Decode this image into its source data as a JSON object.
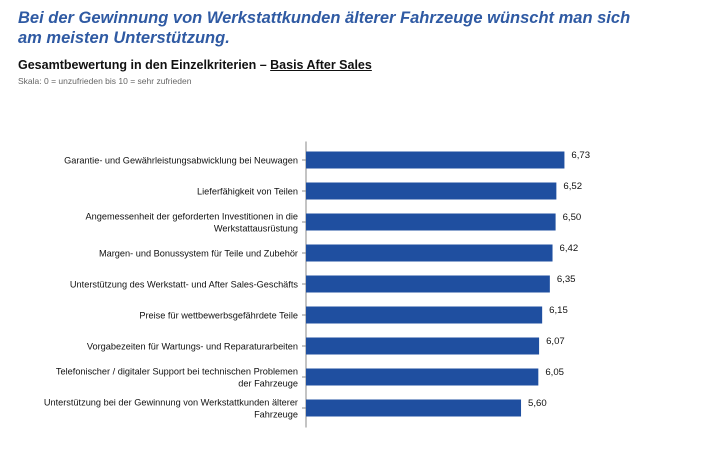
{
  "header": {
    "headline": "Bei der Gewinnung von Werkstattkunden älterer Fahrzeuge wünscht man sich am meisten Unterstützung.",
    "subtitle_main": "Gesamtbewertung in den Einzelkriterien – ",
    "subtitle_basis": "Basis After Sales",
    "scale_note": "Skala: 0 = unzufrieden bis 10 = sehr zufrieden"
  },
  "chart_data": {
    "type": "bar",
    "orientation": "horizontal",
    "title": "Gesamtbewertung in den Einzelkriterien – Basis After Sales",
    "subtitle": "Skala: 0 = unzufrieden bis 10 = sehr zufrieden",
    "categories": [
      [
        "Garantie- und Gewährleistungsabwicklung bei Neuwagen"
      ],
      [
        "Lieferfähigkeit von Teilen"
      ],
      [
        "Angemessenheit der geforderten Investitionen in die",
        "Werkstattausrüstung"
      ],
      [
        "Margen- und Bonussystem für Teile und Zubehör"
      ],
      [
        "Unterstützung des Werkstatt- und After Sales-Geschäfts"
      ],
      [
        "Preise für wettbewerbsgefährdete Teile"
      ],
      [
        "Vorgabezeiten für Wartungs- und Reparaturarbeiten"
      ],
      [
        "Telefonischer / digitaler Support bei technischen Problemen",
        "der Fahrzeuge"
      ],
      [
        "Unterstützung bei der Gewinnung von Werkstattkunden älterer",
        "Fahrzeuge"
      ]
    ],
    "values": [
      6.73,
      6.52,
      6.5,
      6.42,
      6.35,
      6.15,
      6.07,
      6.05,
      5.6
    ],
    "value_labels": [
      "6,73",
      "6,52",
      "6,50",
      "6,42",
      "6,35",
      "6,15",
      "6,07",
      "6,05",
      "5,60"
    ],
    "xlim": [
      0,
      10
    ],
    "bar_color": "#1f4fa0",
    "grid": false,
    "legend": "none"
  }
}
